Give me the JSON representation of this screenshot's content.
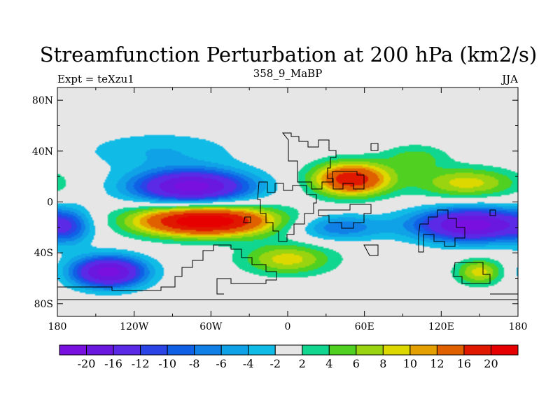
{
  "chart_data": {
    "type": "heatmap",
    "title": "Streamfunction Perturbation at 200 hPa (km2/s)",
    "left_label": "Expt = teXzu1",
    "center_label": "358_9_MaBP",
    "right_label": "JJA",
    "x_ticks": [
      "180",
      "120W",
      "60W",
      "0",
      "60E",
      "120E",
      "180"
    ],
    "x_tick_values": [
      -180,
      -120,
      -60,
      0,
      60,
      120,
      180
    ],
    "y_ticks": [
      "80N",
      "40N",
      "0",
      "40S",
      "80S"
    ],
    "y_tick_values": [
      80,
      40,
      0,
      -40,
      -80
    ],
    "xlim": [
      -180,
      180
    ],
    "ylim": [
      -90,
      90
    ],
    "colorbar_labels": [
      "-20",
      "-16",
      "-12",
      "-10",
      "-8",
      "-6",
      "-4",
      "-2",
      "2",
      "4",
      "6",
      "8",
      "10",
      "12",
      "16",
      "20"
    ],
    "colorbar_colors": [
      "#7a10e0",
      "#6a18e0",
      "#5a2ae6",
      "#2a44e6",
      "#1060e6",
      "#1080e6",
      "#10a2e6",
      "#10bce6",
      "#e6e6e6",
      "#10d690",
      "#50d020",
      "#9ad410",
      "#dcd800",
      "#e4a000",
      "#e06000",
      "#e01800",
      "#e60000"
    ],
    "blobs": [
      {
        "lon": -75,
        "lat": 12,
        "rlon": 45,
        "rlat": 13,
        "value": -22
      },
      {
        "lon": -140,
        "lat": -55,
        "rlon": 28,
        "rlat": 12,
        "value": -22
      },
      {
        "lon": 145,
        "lat": -18,
        "rlon": 45,
        "rlat": 13,
        "value": -22
      },
      {
        "lon": -65,
        "lat": -15,
        "rlon": 55,
        "rlat": 12,
        "value": 24
      },
      {
        "lon": 50,
        "lat": 18,
        "rlon": 30,
        "rlat": 13,
        "value": 19
      },
      {
        "lon": 40,
        "lat": -20,
        "rlon": 35,
        "rlat": 10,
        "value": -8
      },
      {
        "lon": 0,
        "lat": -45,
        "rlon": 35,
        "rlat": 12,
        "value": 9
      },
      {
        "lon": 150,
        "lat": -55,
        "rlon": 18,
        "rlat": 10,
        "value": 9
      },
      {
        "lon": 140,
        "lat": 15,
        "rlon": 40,
        "rlat": 12,
        "value": 9
      },
      {
        "lon": -100,
        "lat": 40,
        "rlon": 60,
        "rlat": 15,
        "value": -4
      },
      {
        "lon": 100,
        "lat": 35,
        "rlon": 25,
        "rlat": 10,
        "value": 5
      },
      {
        "lon": -170,
        "lat": -20,
        "rlon": 15,
        "rlat": 15,
        "value": -5
      }
    ]
  }
}
